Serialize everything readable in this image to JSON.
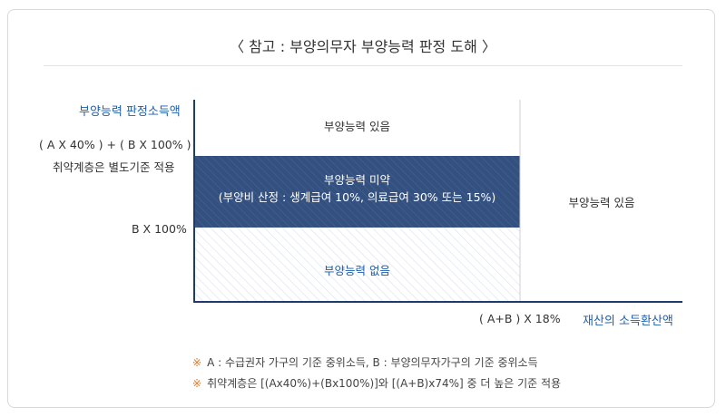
{
  "title": "〈 참고 : 부양의무자 부양능력 판정 도해 〉",
  "axes": {
    "y_title": "부양능력 판정소득액",
    "x_title": "재산의 소득환산액",
    "y_tick_upper_1": "( A X 40% ) + ( B X 100% )",
    "y_tick_upper_2": "취약계층은 별도기준 적용",
    "y_tick_lower": "B X 100%",
    "x_tick": "( A+B ) X 18%"
  },
  "regions": {
    "top_left": "부양능력 있음",
    "middle_line1": "부양능력 미약",
    "middle_line2": "(부양비 산정 : 생계급여 10%, 의료급여 30% 또는 15%)",
    "bottom": "부양능력 없음",
    "right": "부양능력 있음"
  },
  "notes": [
    {
      "mark": "※",
      "text": "A : 수급권자 가구의 기준 중위소득, B : 부양의무자가구의 기준 중위소득"
    },
    {
      "mark": "※",
      "text": "취약계층은 [(Ax40%)+(Bx100%)]와 [(A+B)x74%] 중 더 높은 기준 적용"
    }
  ],
  "colors": {
    "axis_blue": "#1f5ea8",
    "band_navy": "#2f4a78",
    "hatch_light": "#dde6f2",
    "note_mark": "#e07b2a"
  }
}
